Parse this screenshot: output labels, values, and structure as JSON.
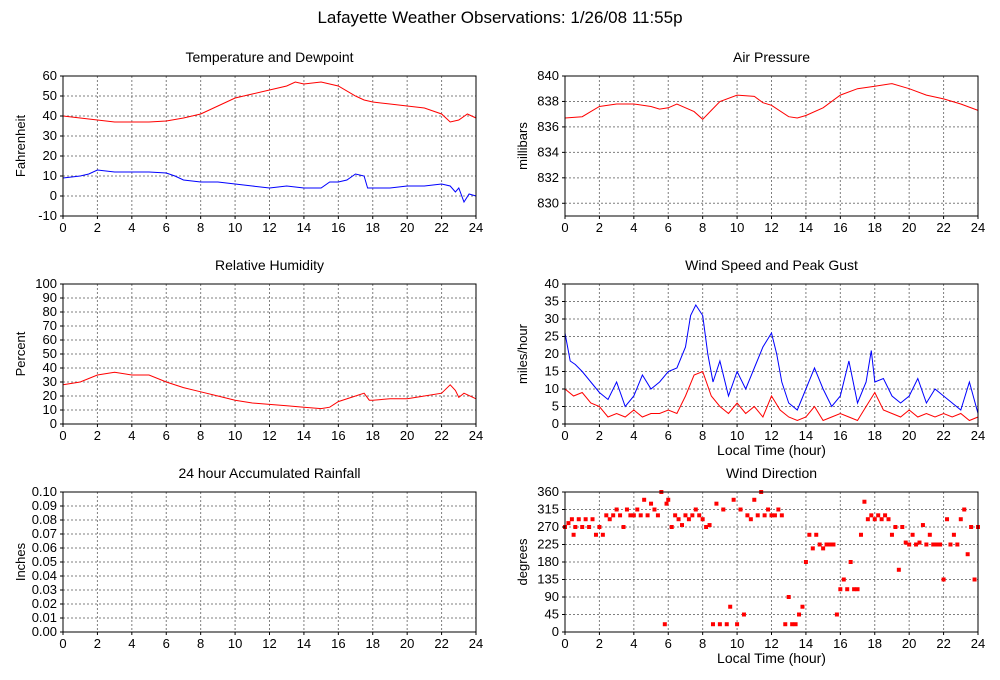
{
  "page": {
    "title": "Lafayette Weather Observations: 1/26/08 11:55p"
  },
  "colors": {
    "red": "#ff0000",
    "blue": "#0000ff",
    "grid": "#7f7f7f",
    "frame": "#000000"
  },
  "chart_data": [
    {
      "id": "temperature",
      "type": "line",
      "title": "Temperature and Dewpoint",
      "ylabel": "Fahrenheit",
      "xlabel": "",
      "xlim": [
        0,
        24
      ],
      "ylim": [
        -10,
        60
      ],
      "xticks": [
        0,
        2,
        4,
        6,
        8,
        10,
        12,
        14,
        16,
        18,
        20,
        22,
        24
      ],
      "yticks": [
        -10,
        0,
        10,
        20,
        30,
        40,
        50,
        60
      ],
      "grid": true,
      "series": [
        {
          "color": "#ff0000",
          "style": "line",
          "x": [
            0,
            1,
            2,
            3,
            4,
            5,
            6,
            7,
            8,
            9,
            10,
            11,
            12,
            13,
            13.5,
            14,
            15,
            16,
            17,
            17.5,
            18,
            19,
            20,
            21,
            22,
            22.5,
            23,
            23.5,
            24
          ],
          "y": [
            40,
            39,
            38,
            37,
            37,
            37,
            37.5,
            39,
            41,
            45,
            49,
            51,
            53,
            55,
            57,
            56,
            57,
            55,
            50,
            48,
            47,
            46,
            45,
            44,
            41,
            37,
            38,
            41,
            39
          ]
        },
        {
          "color": "#0000ff",
          "style": "line",
          "x": [
            0,
            1,
            1.5,
            2,
            3,
            4,
            5,
            6,
            6.5,
            7,
            8,
            9,
            10,
            11,
            12,
            13,
            14,
            15,
            15.5,
            16,
            16.5,
            17,
            17.5,
            17.7,
            18,
            19,
            20,
            21,
            22,
            22.5,
            22.8,
            23,
            23.3,
            23.6,
            24
          ],
          "y": [
            9,
            10,
            11,
            13,
            12,
            12,
            12,
            11.5,
            10,
            8,
            7,
            7,
            6,
            5,
            4,
            5,
            4,
            4,
            7,
            7,
            8,
            11,
            10,
            4,
            4,
            4,
            5,
            5,
            6,
            5,
            2,
            4,
            -3,
            1,
            0
          ]
        }
      ]
    },
    {
      "id": "pressure",
      "type": "line",
      "title": "Air Pressure",
      "ylabel": "millibars",
      "xlabel": "",
      "xlim": [
        0,
        24
      ],
      "ylim": [
        829,
        840
      ],
      "xticks": [
        0,
        2,
        4,
        6,
        8,
        10,
        12,
        14,
        16,
        18,
        20,
        22,
        24
      ],
      "yticks": [
        830,
        832,
        834,
        836,
        838,
        840
      ],
      "grid": true,
      "series": [
        {
          "color": "#ff0000",
          "style": "line",
          "x": [
            0,
            1,
            1.5,
            2,
            3,
            4,
            5,
            5.5,
            6,
            6.5,
            7,
            7.5,
            8,
            8.5,
            9,
            10,
            11,
            11.5,
            12,
            13,
            13.5,
            14,
            15,
            16,
            17,
            18,
            19,
            20,
            21,
            22,
            23,
            24
          ],
          "y": [
            836.7,
            836.8,
            837.2,
            837.6,
            837.8,
            837.8,
            837.6,
            837.4,
            837.5,
            837.8,
            837.5,
            837.2,
            836.6,
            837.3,
            838.0,
            838.5,
            838.4,
            837.9,
            837.7,
            836.8,
            836.7,
            836.9,
            837.5,
            838.5,
            839.0,
            839.2,
            839.4,
            839.0,
            838.5,
            838.2,
            837.8,
            837.3
          ]
        }
      ]
    },
    {
      "id": "humidity",
      "type": "line",
      "title": "Relative Humidity",
      "ylabel": "Percent",
      "xlabel": "",
      "xlim": [
        0,
        24
      ],
      "ylim": [
        0,
        100
      ],
      "xticks": [
        0,
        2,
        4,
        6,
        8,
        10,
        12,
        14,
        16,
        18,
        20,
        22,
        24
      ],
      "yticks": [
        0,
        10,
        20,
        30,
        40,
        50,
        60,
        70,
        80,
        90,
        100
      ],
      "grid": true,
      "series": [
        {
          "color": "#ff0000",
          "style": "line",
          "x": [
            0,
            1,
            2,
            3,
            4,
            5,
            6,
            7,
            8,
            9,
            10,
            11,
            12,
            13,
            14,
            15,
            15.5,
            16,
            17,
            17.5,
            17.8,
            18,
            19,
            20,
            21,
            22,
            22.5,
            22.8,
            23,
            23.3,
            24
          ],
          "y": [
            28,
            30,
            35,
            37,
            35,
            35,
            30,
            26,
            23,
            20,
            17,
            15,
            14,
            13,
            12,
            11,
            12,
            16,
            20,
            22,
            17,
            17,
            18,
            18,
            20,
            22,
            28,
            24,
            19,
            22,
            18
          ]
        }
      ]
    },
    {
      "id": "wind-speed",
      "type": "line",
      "title": "Wind Speed and Peak Gust",
      "ylabel": "miles/hour",
      "xlabel": "Local Time (hour)",
      "xlim": [
        0,
        24
      ],
      "ylim": [
        0,
        40
      ],
      "xticks": [
        0,
        2,
        4,
        6,
        8,
        10,
        12,
        14,
        16,
        18,
        20,
        22,
        24
      ],
      "yticks": [
        0,
        5,
        10,
        15,
        20,
        25,
        30,
        35,
        40
      ],
      "grid": true,
      "series": [
        {
          "color": "#0000ff",
          "style": "line",
          "x": [
            0,
            0.3,
            0.6,
            1,
            1.5,
            2,
            2.5,
            3,
            3.5,
            4,
            4.5,
            5,
            5.5,
            6,
            6.5,
            7,
            7.3,
            7.6,
            8,
            8.3,
            8.6,
            9,
            9.5,
            10,
            10.5,
            11,
            11.5,
            12,
            12.3,
            12.6,
            13,
            13.5,
            14,
            14.5,
            15,
            15.5,
            16,
            16.5,
            17,
            17.5,
            17.8,
            18,
            18.5,
            19,
            19.5,
            20,
            20.5,
            21,
            21.5,
            22,
            22.5,
            23,
            23.5,
            24
          ],
          "y": [
            26,
            18,
            17,
            15,
            12,
            9,
            7,
            12,
            5,
            8,
            14,
            10,
            12,
            15,
            16,
            22,
            31,
            34,
            31,
            20,
            12,
            18,
            8,
            15,
            10,
            16,
            22,
            26,
            20,
            12,
            6,
            4,
            10,
            16,
            10,
            5,
            8,
            18,
            6,
            12,
            21,
            12,
            13,
            8,
            6,
            8,
            13,
            6,
            10,
            8,
            6,
            4,
            12,
            3
          ]
        },
        {
          "color": "#ff0000",
          "style": "line",
          "x": [
            0,
            0.5,
            1,
            1.5,
            2,
            2.5,
            3,
            3.5,
            4,
            4.5,
            5,
            5.5,
            6,
            6.5,
            7,
            7.5,
            8,
            8.5,
            9,
            9.5,
            10,
            10.5,
            11,
            11.5,
            12,
            12.5,
            13,
            13.5,
            14,
            14.5,
            15,
            15.5,
            16,
            16.5,
            17,
            17.5,
            18,
            18.5,
            19,
            19.5,
            20,
            20.5,
            21,
            21.5,
            22,
            22.5,
            23,
            23.5,
            24
          ],
          "y": [
            10,
            8,
            9,
            6,
            5,
            2,
            3,
            2,
            4,
            2,
            3,
            3,
            4,
            3,
            8,
            14,
            15,
            8,
            5,
            3,
            6,
            3,
            5,
            2,
            8,
            4,
            2,
            1,
            2,
            5,
            1,
            2,
            3,
            2,
            1,
            5,
            9,
            4,
            3,
            2,
            4,
            2,
            3,
            2,
            3,
            2,
            3,
            1,
            2
          ]
        }
      ]
    },
    {
      "id": "rainfall",
      "type": "line",
      "title": "24 hour Accumulated Rainfall",
      "ylabel": "Inches",
      "xlabel": "",
      "xlim": [
        0,
        24
      ],
      "ylim": [
        0,
        0.1
      ],
      "xticks": [
        0,
        2,
        4,
        6,
        8,
        10,
        12,
        14,
        16,
        18,
        20,
        22,
        24
      ],
      "yticks": [
        0.0,
        0.01,
        0.02,
        0.03,
        0.04,
        0.05,
        0.06,
        0.07,
        0.08,
        0.09,
        0.1
      ],
      "ytick_decimals": 2,
      "grid": true,
      "series": [
        {
          "color": "#ff0000",
          "style": "line",
          "x": [
            0,
            24
          ],
          "y": [
            0,
            0
          ]
        }
      ]
    },
    {
      "id": "wind-direction",
      "type": "scatter",
      "title": "Wind Direction",
      "ylabel": "degrees",
      "xlabel": "Local Time (hour)",
      "xlim": [
        0,
        24
      ],
      "ylim": [
        0,
        360
      ],
      "xticks": [
        0,
        2,
        4,
        6,
        8,
        10,
        12,
        14,
        16,
        18,
        20,
        22,
        24
      ],
      "yticks": [
        0,
        45,
        90,
        135,
        180,
        225,
        270,
        315,
        360
      ],
      "grid": true,
      "series": [
        {
          "color": "#ff0000",
          "style": "points",
          "x": [
            0,
            0.2,
            0.4,
            0.5,
            0.6,
            0.8,
            1,
            1.2,
            1.4,
            1.6,
            1.8,
            2,
            2.2,
            2.4,
            2.6,
            2.8,
            3,
            3.2,
            3.4,
            3.6,
            3.8,
            4,
            4.2,
            4.4,
            4.6,
            4.8,
            5,
            5.2,
            5.4,
            5.6,
            5.8,
            5.9,
            6,
            6.2,
            6.4,
            6.6,
            6.8,
            7,
            7.2,
            7.4,
            7.6,
            7.8,
            8,
            8.2,
            8.4,
            8.6,
            8.8,
            9,
            9.2,
            9.4,
            9.6,
            9.8,
            10,
            10.2,
            10.4,
            10.6,
            10.8,
            11,
            11.2,
            11.4,
            11.6,
            11.8,
            12,
            12.2,
            12.4,
            12.6,
            12.8,
            13,
            13.2,
            13.4,
            13.6,
            13.8,
            14,
            14.2,
            14.4,
            14.6,
            14.8,
            15,
            15.2,
            15.4,
            15.6,
            15.8,
            16,
            16.2,
            16.4,
            16.6,
            16.8,
            17,
            17.2,
            17.4,
            17.6,
            17.8,
            18,
            18.2,
            18.4,
            18.6,
            18.8,
            19,
            19.2,
            19.4,
            19.6,
            19.8,
            20,
            20.2,
            20.4,
            20.6,
            20.8,
            21,
            21.2,
            21.4,
            21.6,
            21.8,
            22,
            22.2,
            22.4,
            22.6,
            22.8,
            23,
            23.2,
            23.4,
            23.6,
            23.8,
            24
          ],
          "y": [
            270,
            280,
            290,
            250,
            270,
            290,
            270,
            290,
            270,
            290,
            250,
            270,
            250,
            300,
            290,
            300,
            315,
            300,
            270,
            315,
            300,
            300,
            315,
            300,
            340,
            300,
            330,
            315,
            300,
            360,
            20,
            330,
            340,
            270,
            300,
            290,
            275,
            300,
            290,
            300,
            315,
            300,
            290,
            270,
            275,
            20,
            330,
            20,
            315,
            20,
            65,
            340,
            20,
            315,
            45,
            300,
            290,
            340,
            300,
            360,
            300,
            315,
            300,
            300,
            315,
            300,
            20,
            90,
            20,
            20,
            45,
            65,
            180,
            250,
            215,
            250,
            225,
            215,
            225,
            225,
            225,
            45,
            110,
            135,
            110,
            180,
            110,
            110,
            250,
            335,
            290,
            300,
            290,
            300,
            290,
            300,
            290,
            250,
            270,
            160,
            270,
            230,
            225,
            250,
            225,
            230,
            275,
            225,
            250,
            225,
            225,
            225,
            135,
            290,
            225,
            250,
            225,
            290,
            315,
            200,
            270,
            135,
            270
          ]
        }
      ]
    }
  ]
}
